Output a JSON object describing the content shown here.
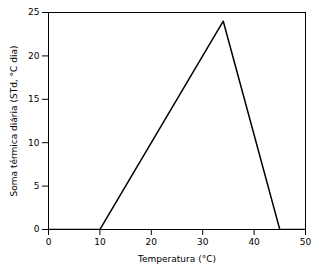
{
  "chart_data": {
    "type": "line",
    "x": [
      0,
      10,
      34,
      45,
      50
    ],
    "values": [
      0,
      0,
      24,
      0,
      0
    ],
    "color": "#000000",
    "xlabel": "Temperatura (°C)",
    "ylabel": "Soma térmica diária (STd, °C dia)",
    "xlim": [
      0,
      50
    ],
    "ylim": [
      0,
      25
    ],
    "xticks": [
      0,
      10,
      20,
      30,
      40,
      50
    ],
    "yticks": [
      0,
      5,
      10,
      15,
      20,
      25
    ]
  }
}
